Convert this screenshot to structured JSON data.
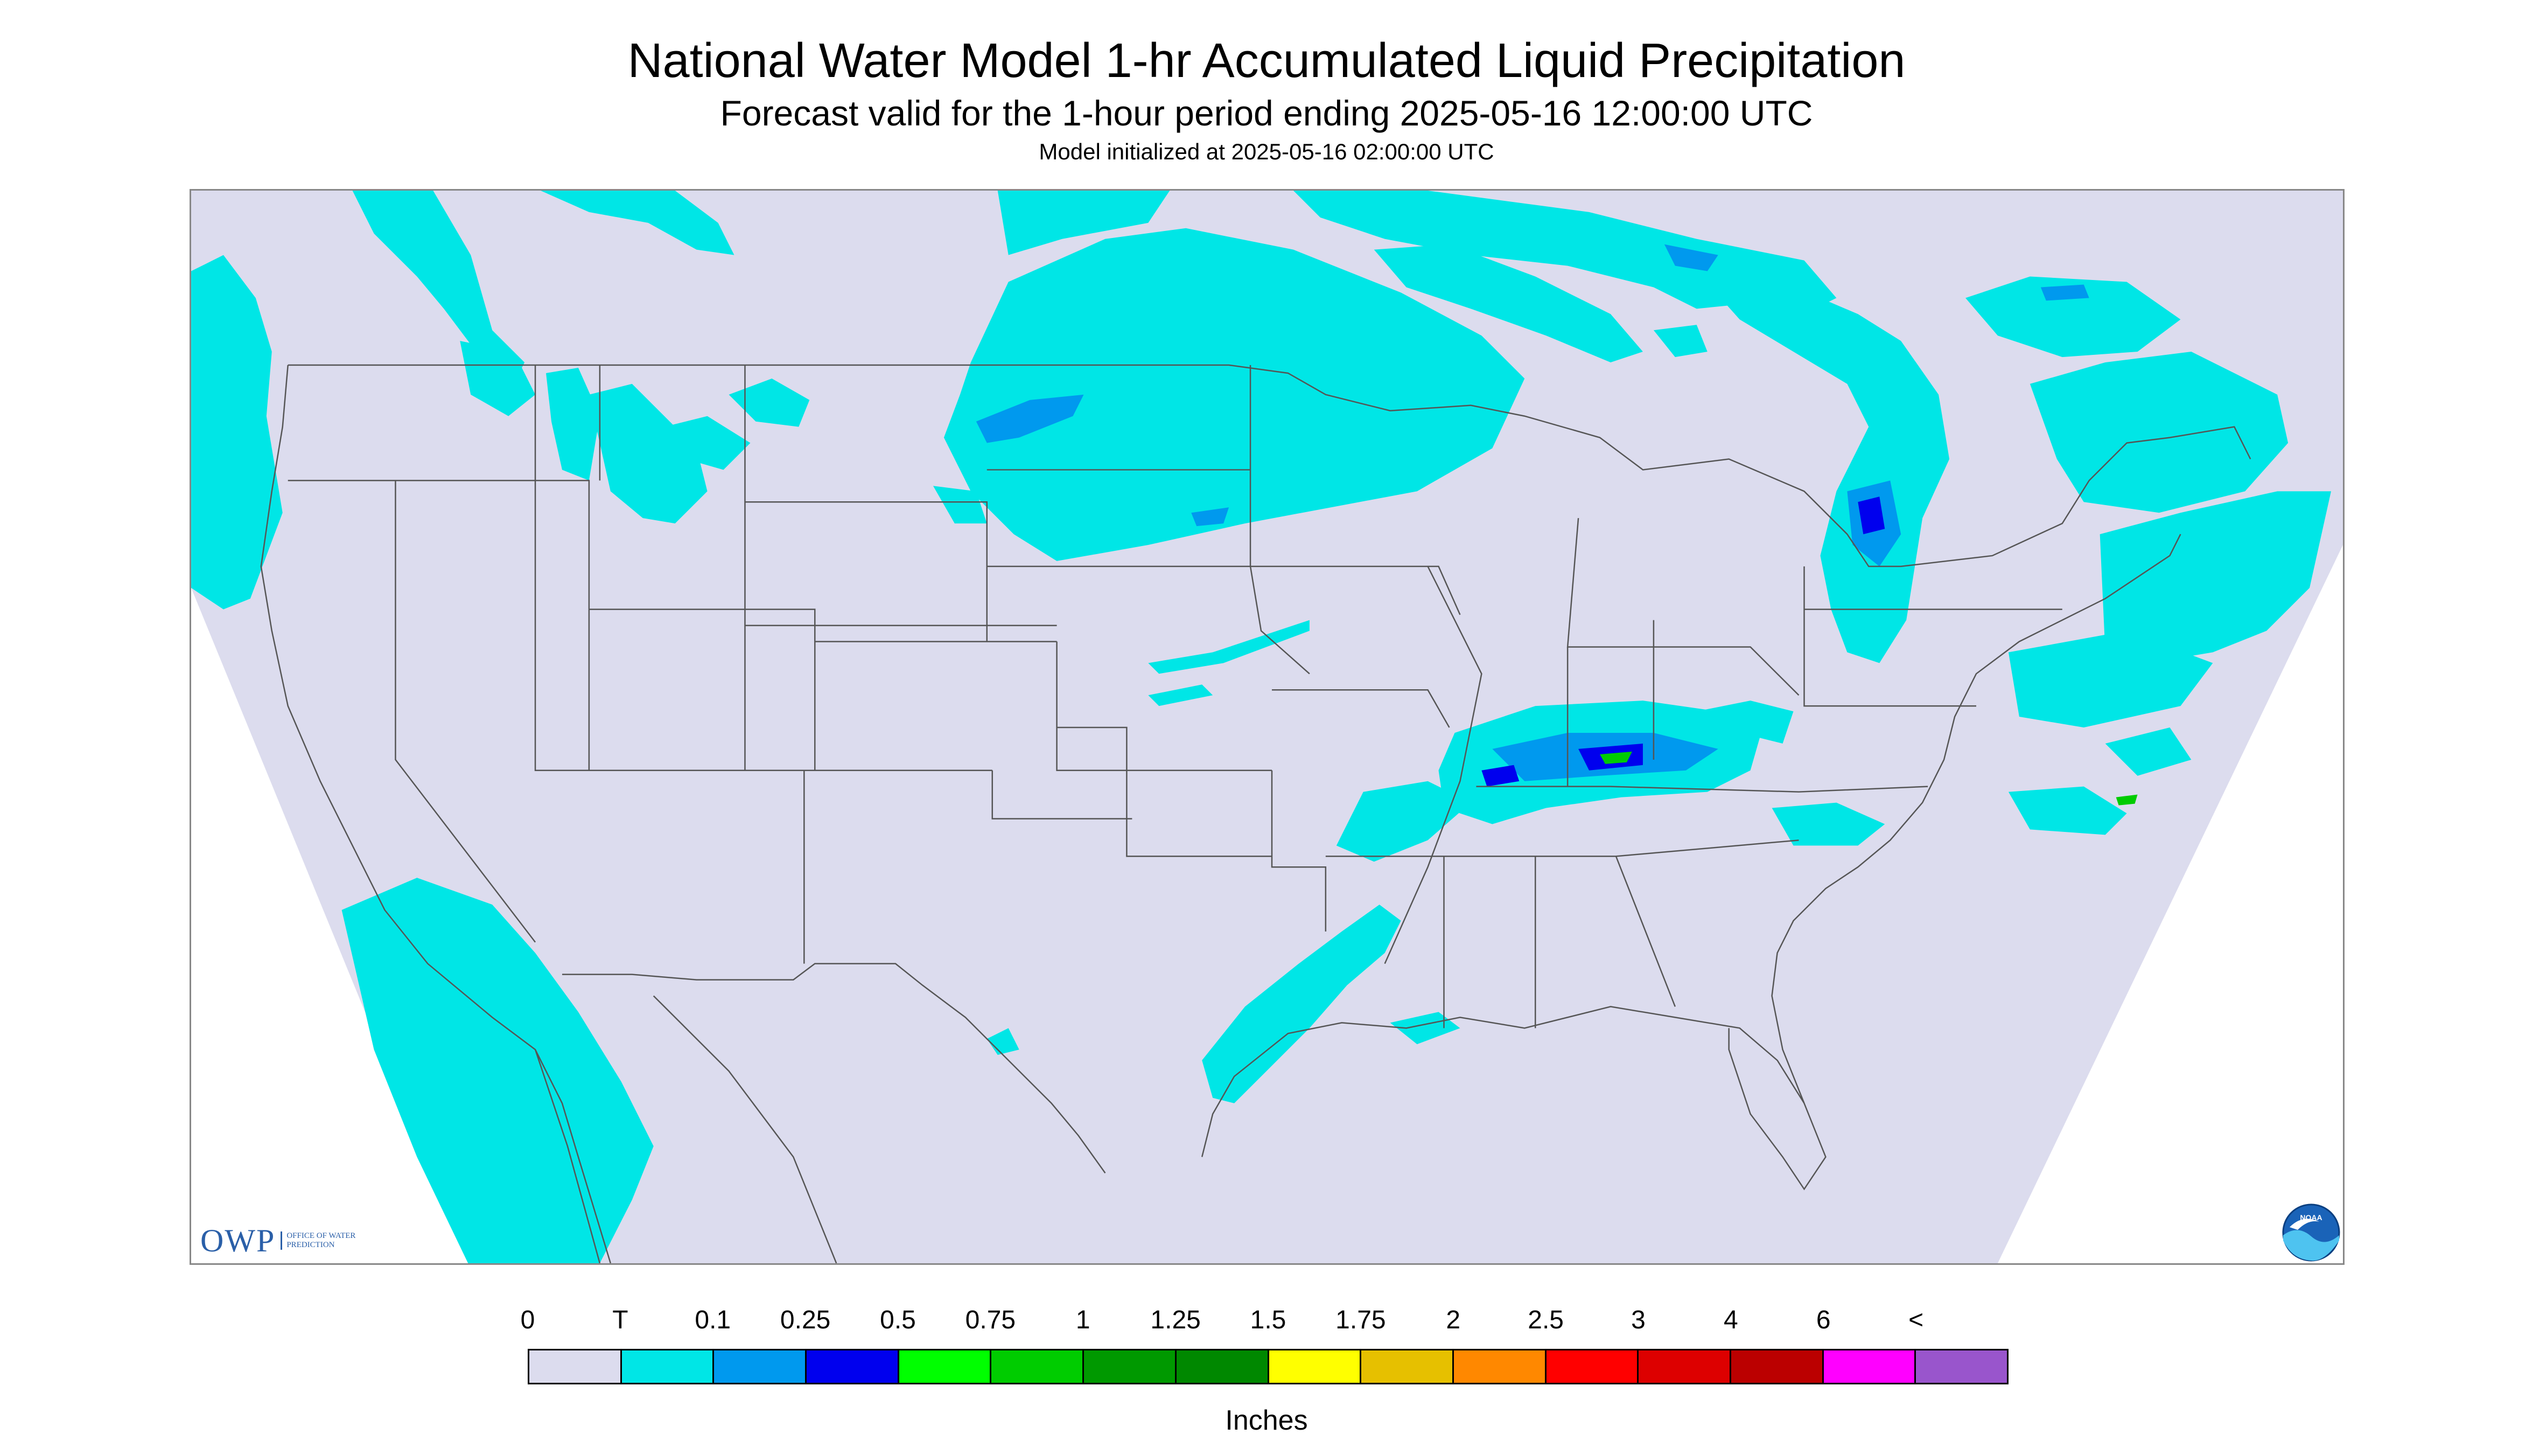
{
  "title": "National Water Model 1-hr Accumulated Liquid Precipitation",
  "subtitle": "Forecast valid for the 1-hour period ending 2025-05-16 12:00:00 UTC",
  "init_text": "Model initialized at 2025-05-16 02:00:00 UTC",
  "colors": {
    "domain_background": "#dcdcee",
    "outside_domain": "#ffffff",
    "precip_light": "#00e6e6",
    "precip_med": "#0099ee",
    "precip_heavy": "#0000ee",
    "precip_green": "#00cc00",
    "boundary_line": "#555555"
  },
  "owp_logo": {
    "mark": "OWP",
    "text": "OFFICE OF WATER PREDICTION"
  },
  "noaa_logo": {
    "text": "NOAA"
  },
  "legend": {
    "tick_labels": [
      "0",
      "T",
      "0.1",
      "0.25",
      "0.5",
      "0.75",
      "1",
      "1.25",
      "1.5",
      "1.75",
      "2",
      "2.5",
      "3",
      "4",
      "6",
      "<"
    ],
    "colors": [
      "#dcdcee",
      "#00e6e6",
      "#0099ee",
      "#0000ee",
      "#00ff00",
      "#00cc00",
      "#009900",
      "#008800",
      "#ffff00",
      "#e6c000",
      "#ff8800",
      "#ff0000",
      "#dd0000",
      "#bb0000",
      "#ff00ff",
      "#9955cc"
    ],
    "units": "Inches"
  }
}
